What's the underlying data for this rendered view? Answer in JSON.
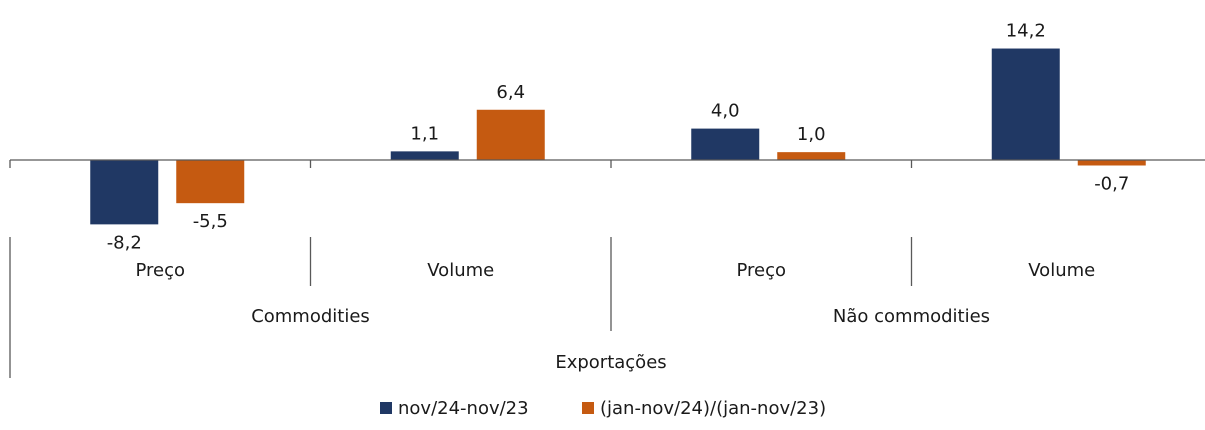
{
  "chart_data": {
    "type": "bar",
    "title": "",
    "xlabel": "",
    "ylabel": "",
    "ylim": [
      -10,
      16
    ],
    "grid": false,
    "legend_position": "bottom-center",
    "categories": [
      "Preço",
      "Volume",
      "Preço",
      "Volume"
    ],
    "groups": [
      {
        "label": "Commodities",
        "categories": [
          "Preço",
          "Volume"
        ]
      },
      {
        "label": "Não commodities",
        "categories": [
          "Preço",
          "Volume"
        ]
      }
    ],
    "supergroup": "Exportações",
    "series": [
      {
        "name": "nov/24-nov/23",
        "color": "#203864",
        "values": [
          -8.2,
          1.1,
          4.0,
          14.2
        ],
        "labels": [
          "-8,2",
          "1,1",
          "4,0",
          "14,2"
        ]
      },
      {
        "name": "(jan-nov/24)/(jan-nov/23)",
        "color": "#C55A11",
        "values": [
          -5.5,
          6.4,
          1.0,
          -0.7
        ],
        "labels": [
          "-5,5",
          "6,4",
          "1,0",
          "-0,7"
        ]
      }
    ]
  },
  "colors": {
    "axis": "#595959",
    "text": "#1a1a1a"
  }
}
